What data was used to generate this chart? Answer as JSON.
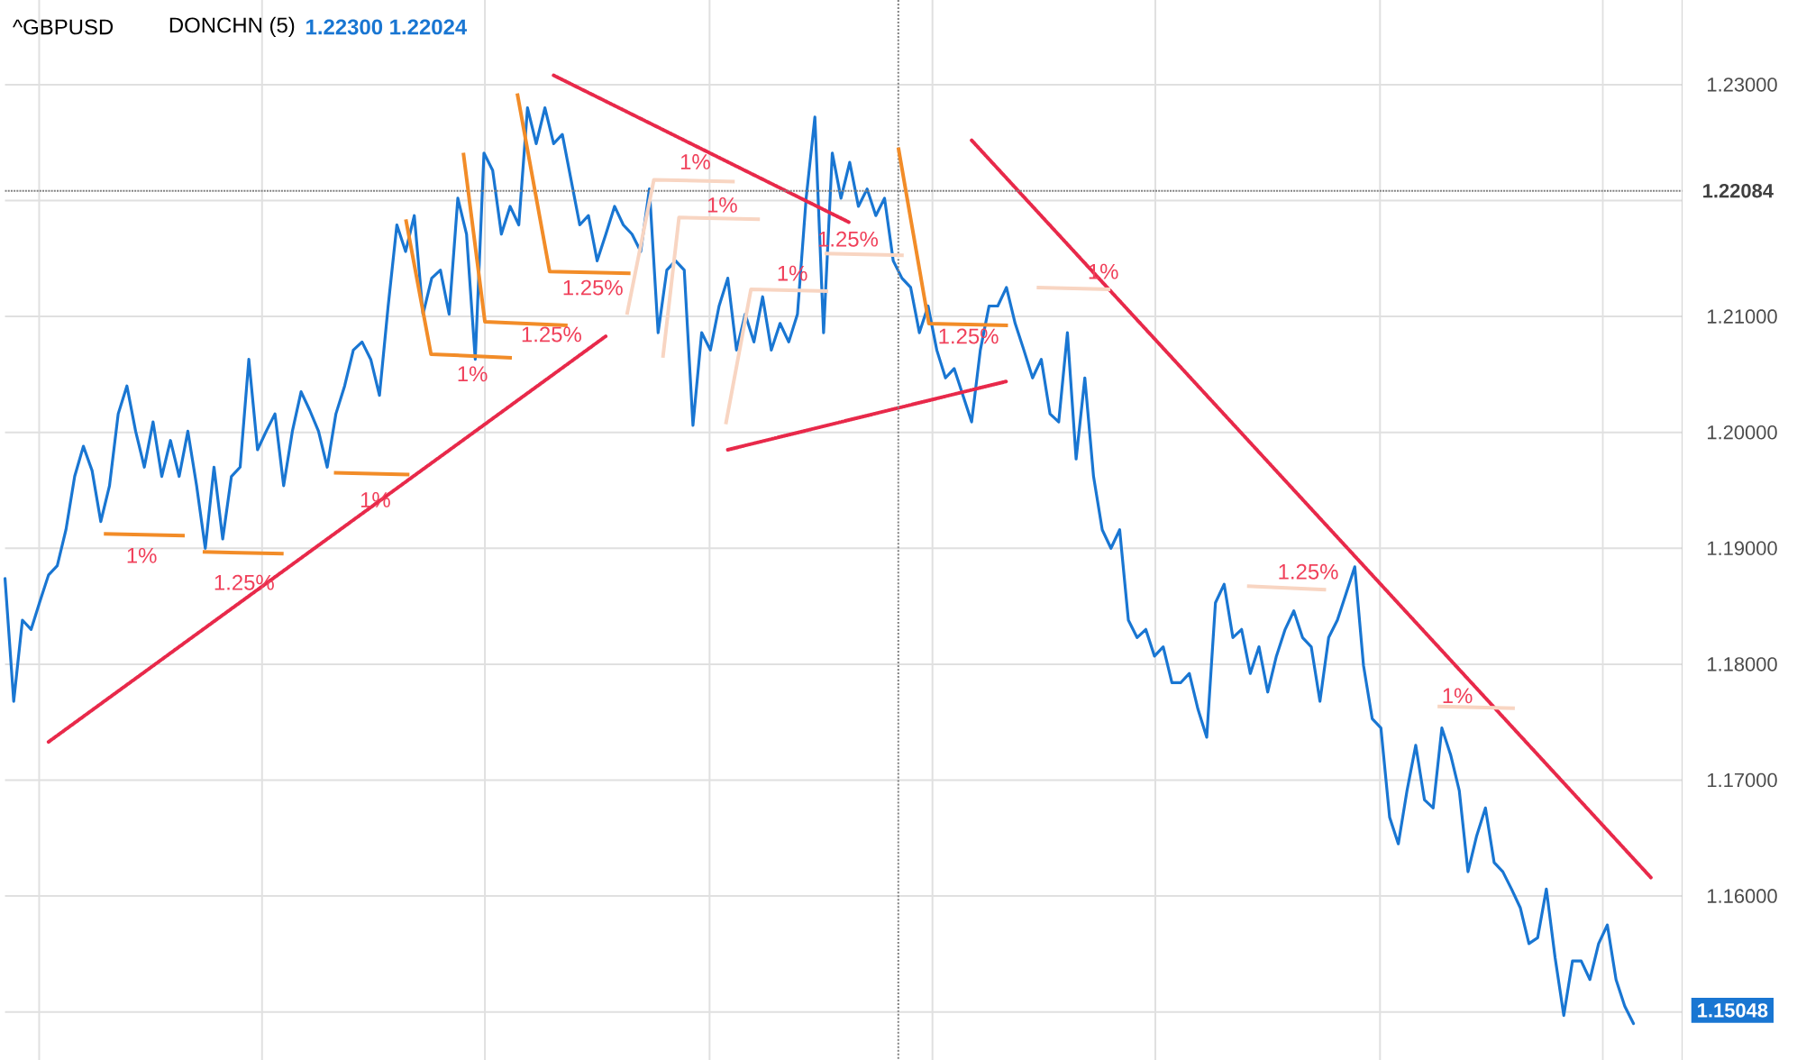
{
  "chart_data": {
    "type": "line",
    "title": "^GBPUSD",
    "subtitle": "DONCHN (5)",
    "categories": [
      null,
      null,
      null,
      null,
      null,
      null,
      null,
      null,
      null,
      null,
      null,
      null,
      null,
      null,
      null,
      null,
      null,
      null,
      null,
      null,
      null,
      null,
      null,
      null,
      null,
      null,
      null,
      null,
      null,
      null,
      null,
      null,
      null,
      null,
      null,
      null,
      null,
      null,
      null,
      null,
      null,
      null,
      null,
      null,
      null,
      null,
      null,
      null,
      null,
      null,
      null,
      null,
      null,
      null,
      null,
      null,
      null,
      null,
      null,
      null,
      null,
      null,
      null,
      null,
      null,
      null,
      null,
      null,
      null,
      null,
      null,
      null,
      null,
      null,
      null,
      null,
      null,
      null,
      null,
      null,
      null,
      null,
      null,
      null,
      null,
      null,
      null,
      null,
      null,
      null,
      null,
      null,
      null,
      null,
      null,
      null,
      null,
      null,
      null,
      null,
      null,
      null,
      null,
      null,
      null,
      null,
      null,
      null,
      null,
      null,
      null,
      null,
      null,
      null,
      null,
      null,
      null,
      null,
      null,
      null,
      null,
      null,
      null,
      null,
      null,
      null,
      null,
      null,
      null,
      null,
      null,
      null,
      null,
      null,
      null,
      null,
      null,
      null,
      null,
      null,
      null,
      null,
      null,
      null,
      null,
      null,
      null,
      null,
      null,
      null,
      null,
      null,
      null,
      null,
      null,
      null,
      null,
      null,
      null,
      null,
      null,
      null,
      null,
      null,
      null,
      null,
      null,
      null,
      null,
      null,
      null,
      null,
      null,
      null,
      null,
      null,
      null,
      null,
      null,
      null,
      null,
      null,
      null,
      null,
      null,
      null,
      null,
      null,
      null,
      null
    ],
    "ylim": [
      1.1458,
      1.2373
    ],
    "yticks": [
      {
        "value": 1.15,
        "label": null
      },
      {
        "value": 1.16,
        "label": "1.16000"
      },
      {
        "value": 1.17,
        "label": "1.17000"
      },
      {
        "value": 1.18,
        "label": "1.18000"
      },
      {
        "value": 1.19,
        "label": "1.19000"
      },
      {
        "value": 1.2,
        "label": "1.20000"
      },
      {
        "value": 1.21,
        "label": "1.21000"
      },
      {
        "value": 1.22,
        "label": null
      },
      {
        "value": 1.23,
        "label": "1.23000"
      }
    ],
    "tick_labels": "y",
    "grid": true,
    "marker": "none",
    "line_style": "solid",
    "series": [
      {
        "color": "#1976d2",
        "values": [
          1.1874,
          1.1768,
          1.1838,
          1.183,
          1.1854,
          1.1877,
          1.1885,
          1.1916,
          1.1962,
          1.1988,
          1.1967,
          1.1923,
          1.1954,
          1.2016,
          1.204,
          1.2001,
          1.197,
          1.2009,
          1.1962,
          1.1993,
          1.1962,
          1.2001,
          1.1954,
          1.19,
          1.197,
          1.1908,
          1.1962,
          1.197,
          1.2063,
          1.1985,
          1.2001,
          1.2016,
          1.1954,
          1.2001,
          1.2035,
          1.2019,
          1.2001,
          1.197,
          1.2016,
          1.204,
          1.2071,
          1.2078,
          1.2063,
          1.2032,
          1.2109,
          1.2179,
          1.2156,
          1.2187,
          1.2102,
          1.2133,
          1.214,
          1.2102,
          1.2202,
          1.2171,
          1.2063,
          1.2241,
          1.2226,
          1.2171,
          1.2195,
          1.2179,
          1.228,
          1.2249,
          1.228,
          1.2249,
          1.2257,
          1.2218,
          1.2179,
          1.2187,
          1.2148,
          1.2171,
          1.2195,
          1.2179,
          1.2171,
          1.2156,
          1.221,
          1.2086,
          1.214,
          1.2148,
          1.214,
          1.2006,
          1.2086,
          1.2071,
          1.2109,
          1.2133,
          1.2071,
          1.2102,
          1.2078,
          1.2117,
          1.2071,
          1.2094,
          1.2078,
          1.2102,
          1.2202,
          1.2272,
          1.2086,
          1.2241,
          1.2202,
          1.2233,
          1.2195,
          1.221,
          1.2187,
          1.2202,
          1.2148,
          1.2133,
          1.2125,
          1.2086,
          1.2109,
          1.2071,
          1.2047,
          1.2055,
          1.2032,
          1.2009,
          1.2071,
          1.2109,
          1.2109,
          1.2125,
          1.2094,
          1.2071,
          1.2047,
          1.2063,
          1.2016,
          1.2009,
          1.2086,
          1.1977,
          1.2047,
          1.1962,
          1.1916,
          1.19,
          1.1916,
          1.1838,
          1.1823,
          1.183,
          1.1807,
          1.1815,
          1.1784,
          1.1784,
          1.1792,
          1.1761,
          1.1737,
          1.1853,
          1.1869,
          1.1823,
          1.183,
          1.1792,
          1.1815,
          1.1776,
          1.1807,
          1.183,
          1.1846,
          1.1823,
          1.1815,
          1.1768,
          1.1823,
          1.1838,
          1.1861,
          1.1884,
          1.1799,
          1.1753,
          1.1745,
          1.1668,
          1.1645,
          1.1691,
          1.173,
          1.1683,
          1.1676,
          1.1745,
          1.1722,
          1.1691,
          1.1621,
          1.1652,
          1.1676,
          1.1629,
          1.1621,
          1.1606,
          1.159,
          1.1559,
          1.1564,
          1.1606,
          1.1547,
          1.1497,
          1.1544,
          1.1544,
          1.1528,
          1.1559,
          1.1575,
          1.1528,
          1.1505,
          1.149,
          null,
          null
        ]
      },
      {
        "color": "#e8294a",
        "line_style": "dotted",
        "values": [
          null,
          null,
          null,
          null,
          null,
          1.1733,
          null,
          null,
          null,
          null,
          null,
          null,
          null,
          null,
          null,
          null,
          null,
          null,
          null,
          null,
          null,
          null,
          null,
          null,
          null,
          null,
          null,
          null,
          null,
          null,
          null,
          null,
          null,
          null,
          null,
          null,
          null,
          null,
          null,
          null,
          null,
          null,
          null,
          null,
          null,
          null,
          null,
          null,
          null,
          null,
          null,
          null,
          null,
          null,
          null,
          null,
          null,
          null,
          null,
          null,
          null,
          null,
          null,
          null,
          null,
          null,
          null,
          null,
          null,
          1.2083,
          null,
          null,
          null,
          null,
          null,
          null,
          null,
          null,
          null,
          null,
          null,
          null,
          null,
          null,
          null,
          null,
          null,
          null,
          null,
          null,
          null,
          null,
          null,
          null,
          null,
          null,
          null,
          null,
          null,
          null,
          null,
          null,
          null,
          null,
          null,
          null,
          null,
          null,
          null,
          null,
          null,
          null,
          null,
          null,
          null,
          null,
          null,
          null,
          null,
          null,
          null,
          null,
          null,
          null,
          null,
          null,
          null,
          null,
          null,
          null,
          null,
          null,
          null,
          null,
          null,
          null,
          null,
          null,
          null,
          null,
          null,
          null,
          null,
          null,
          null,
          null,
          null,
          null,
          null,
          null,
          null,
          null,
          null,
          null,
          null,
          null,
          null,
          null,
          null,
          null,
          null,
          null,
          null,
          null,
          null,
          null,
          null,
          null,
          null,
          null,
          null,
          null,
          null,
          null,
          null,
          null,
          null,
          null,
          null,
          null,
          null,
          null,
          null,
          null,
          null,
          null,
          null,
          null,
          null,
          null
        ]
      },
      {
        "color": "#e8294a",
        "line_style": "dotted",
        "values": [
          null,
          null,
          null,
          null,
          null,
          null,
          null,
          null,
          null,
          null,
          null,
          null,
          null,
          null,
          null,
          null,
          null,
          null,
          null,
          null,
          null,
          null,
          null,
          null,
          null,
          null,
          null,
          null,
          null,
          null,
          null,
          null,
          null,
          null,
          null,
          null,
          null,
          null,
          null,
          null,
          null,
          null,
          null,
          null,
          null,
          null,
          null,
          null,
          null,
          null,
          null,
          null,
          null,
          null,
          null,
          null,
          null,
          null,
          null,
          null,
          null,
          null,
          null,
          1.2308,
          null,
          null,
          null,
          null,
          null,
          null,
          null,
          null,
          null,
          null,
          null,
          null,
          null,
          null,
          null,
          null,
          null,
          null,
          null,
          null,
          null,
          null,
          null,
          null,
          null,
          null,
          null,
          null,
          null,
          null,
          null,
          null,
          null,
          1.2181,
          null,
          null,
          null,
          null,
          null,
          null,
          null,
          null,
          null,
          null,
          null,
          null,
          null,
          null,
          null,
          null,
          null,
          null,
          null,
          null,
          null,
          null,
          null,
          null,
          null,
          null,
          null,
          null,
          null,
          null,
          null,
          null,
          null,
          null,
          null,
          null,
          null,
          null,
          null,
          null,
          null,
          null,
          null,
          null,
          null,
          null,
          null,
          null,
          null,
          null,
          null,
          null,
          null,
          null,
          null,
          null,
          null,
          null,
          null,
          null,
          null,
          null,
          null,
          null,
          null,
          null,
          null,
          null,
          null,
          null,
          null,
          null,
          null,
          null,
          null,
          null,
          null,
          null,
          null,
          null,
          null,
          null,
          null,
          null,
          null,
          null,
          null,
          null,
          null,
          null,
          null,
          null
        ]
      },
      {
        "color": "#e8294a",
        "line_style": "dotted",
        "values": [
          null,
          null,
          null,
          null,
          null,
          null,
          null,
          null,
          null,
          null,
          null,
          null,
          null,
          null,
          null,
          null,
          null,
          null,
          null,
          null,
          null,
          null,
          null,
          null,
          null,
          null,
          null,
          null,
          null,
          null,
          null,
          null,
          null,
          null,
          null,
          null,
          null,
          null,
          null,
          null,
          null,
          null,
          null,
          null,
          null,
          null,
          null,
          null,
          null,
          null,
          null,
          null,
          null,
          null,
          null,
          null,
          null,
          null,
          null,
          null,
          null,
          null,
          null,
          null,
          null,
          null,
          null,
          null,
          null,
          null,
          null,
          null,
          null,
          null,
          null,
          null,
          null,
          null,
          null,
          null,
          null,
          null,
          null,
          1.1985,
          null,
          null,
          null,
          null,
          null,
          null,
          null,
          null,
          null,
          null,
          null,
          null,
          null,
          null,
          null,
          null,
          null,
          null,
          null,
          null,
          null,
          null,
          null,
          null,
          null,
          null,
          null,
          null,
          null,
          null,
          null,
          1.2044,
          null,
          null,
          null,
          null,
          null,
          null,
          null,
          null,
          null,
          null,
          null,
          null,
          null,
          null,
          null,
          null,
          null,
          null,
          null,
          null,
          null,
          null,
          null,
          null,
          null,
          null,
          null,
          null,
          null,
          null,
          null,
          null,
          null,
          null,
          null,
          null,
          null,
          null,
          null,
          null,
          null,
          null,
          null,
          null,
          null,
          null,
          null,
          null,
          null,
          null,
          null,
          null,
          null,
          null,
          null,
          null,
          null,
          null,
          null,
          null,
          null,
          null,
          null,
          null,
          null,
          null,
          null,
          null,
          null,
          null,
          null,
          null,
          null,
          null
        ]
      },
      {
        "color": "#e8294a",
        "line_style": "dotted",
        "values": [
          null,
          null,
          null,
          null,
          null,
          null,
          null,
          null,
          null,
          null,
          null,
          null,
          null,
          null,
          null,
          null,
          null,
          null,
          null,
          null,
          null,
          null,
          null,
          null,
          null,
          null,
          null,
          null,
          null,
          null,
          null,
          null,
          null,
          null,
          null,
          null,
          null,
          null,
          null,
          null,
          null,
          null,
          null,
          null,
          null,
          null,
          null,
          null,
          null,
          null,
          null,
          null,
          null,
          null,
          null,
          null,
          null,
          null,
          null,
          null,
          null,
          null,
          null,
          null,
          null,
          null,
          null,
          null,
          null,
          null,
          null,
          null,
          null,
          null,
          null,
          null,
          null,
          null,
          null,
          null,
          null,
          null,
          null,
          null,
          null,
          null,
          null,
          null,
          null,
          null,
          null,
          null,
          null,
          null,
          null,
          null,
          null,
          null,
          null,
          null,
          null,
          null,
          null,
          null,
          null,
          null,
          null,
          null,
          null,
          null,
          null,
          1.2252,
          null,
          null,
          null,
          null,
          null,
          null,
          null,
          null,
          null,
          null,
          null,
          null,
          null,
          null,
          null,
          null,
          null,
          null,
          null,
          null,
          null,
          null,
          null,
          null,
          null,
          null,
          null,
          null,
          null,
          null,
          null,
          null,
          null,
          null,
          null,
          null,
          null,
          null,
          null,
          null,
          null,
          null,
          null,
          null,
          null,
          null,
          null,
          null,
          null,
          null,
          null,
          null,
          null,
          null,
          null,
          null,
          null,
          null,
          null,
          null,
          null,
          null,
          null,
          null,
          null,
          null,
          null,
          null,
          null,
          null,
          null,
          null,
          null,
          null,
          null,
          null,
          null,
          1.1616
        ]
      }
    ],
    "ref_lines": [
      {
        "axis": "y",
        "value": 1.22084,
        "label": "1.22084",
        "color": "#808080",
        "line_style": "dotted"
      }
    ],
    "annotations": [
      "1.22300 1.22024",
      "1.15048",
      "1%",
      "1.25%",
      "1%",
      "1%",
      "1.25%",
      "1.25%",
      "1%",
      "1%",
      "1.25%",
      "1%",
      "1.25%",
      "1%",
      "1.25%",
      "1%"
    ]
  }
}
